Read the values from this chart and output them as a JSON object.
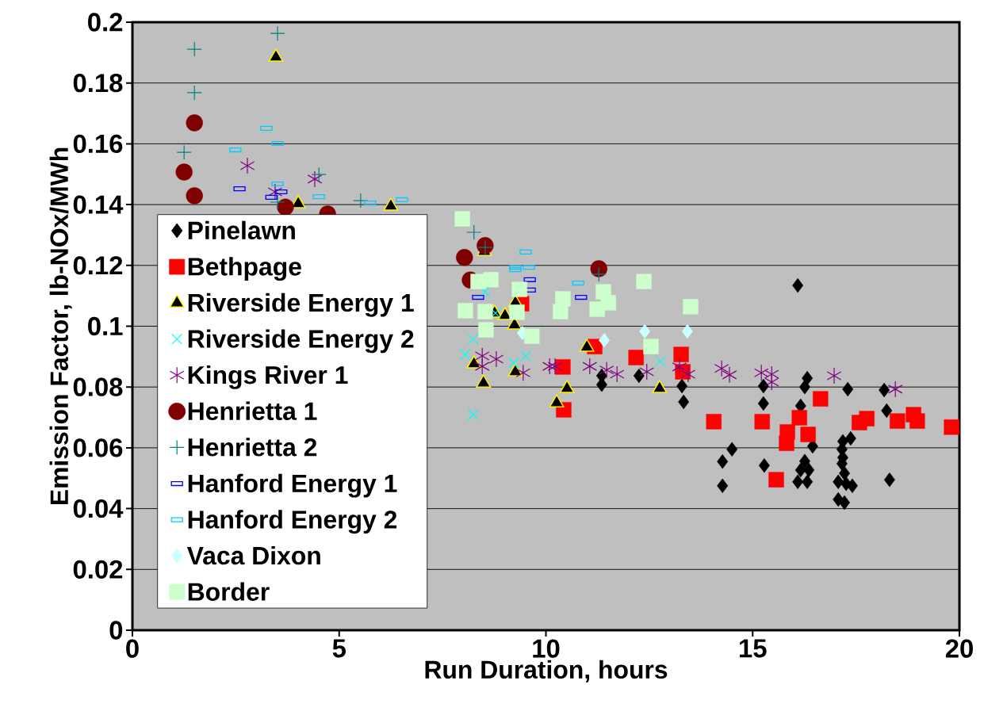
{
  "chart_data": {
    "type": "scatter",
    "xlabel": "Run Duration, hours",
    "ylabel": "Emission Factor, lb-NOx/MWh",
    "xlim": [
      0,
      20
    ],
    "ylim": [
      0,
      0.2
    ],
    "xticks": [
      0,
      5,
      10,
      15,
      20
    ],
    "yticks": [
      0,
      0.02,
      0.04,
      0.06,
      0.08,
      0.1,
      0.12,
      0.14,
      0.16,
      0.18,
      0.2
    ],
    "grid": "y",
    "legend": "left",
    "series": [
      {
        "name": "Pinelawn",
        "color": "#000000",
        "marker": "diamond",
        "x": [
          16.09,
          15.26,
          15.26,
          16.32,
          16.26,
          17.3,
          18.18,
          18.24,
          16.16,
          14.5,
          14.27,
          14.27,
          15.28,
          16.45,
          16.26,
          16.16,
          16.36,
          16.09,
          16.32,
          17.37,
          17.18,
          17.16,
          17.18,
          17.16,
          17.22,
          17.07,
          17.26,
          17.41,
          17.07,
          17.22,
          18.31,
          11.35,
          11.35,
          12.25,
          13.29,
          13.33
        ],
        "values": [
          0.1134,
          0.0803,
          0.0746,
          0.0829,
          0.08,
          0.0793,
          0.079,
          0.0722,
          0.0738,
          0.0595,
          0.0555,
          0.0475,
          0.0542,
          0.0605,
          0.0556,
          0.0527,
          0.0527,
          0.0488,
          0.0488,
          0.0631,
          0.0621,
          0.0595,
          0.0568,
          0.0548,
          0.0516,
          0.0488,
          0.0482,
          0.0475,
          0.043,
          0.042,
          0.0495,
          0.0837,
          0.0808,
          0.0837,
          0.0803,
          0.0751
        ]
      },
      {
        "name": "Bethpage",
        "color": "#ff0000",
        "marker": "square",
        "x": [
          14.06,
          15.23,
          16.64,
          16.13,
          15.84,
          15.82,
          16.34,
          15.57,
          17.76,
          17.58,
          18.5,
          18.89,
          18.98,
          19.81,
          9.41,
          10.41,
          10.43,
          11.18,
          12.18,
          13.27,
          13.31
        ],
        "values": [
          0.0686,
          0.0686,
          0.0761,
          0.0699,
          0.0652,
          0.0615,
          0.0644,
          0.0495,
          0.0696,
          0.0683,
          0.0688,
          0.0709,
          0.0688,
          0.0668,
          0.1074,
          0.0866,
          0.0725,
          0.0933,
          0.0897,
          0.0907,
          0.085
        ]
      },
      {
        "name": "Riverside Energy 1",
        "color": "#000000",
        "marker": "triangle",
        "x": [
          3.47,
          4.01,
          6.25,
          8.51,
          9.26,
          8.76,
          9.01,
          9.24,
          8.26,
          8.49,
          9.26,
          10.99,
          10.51,
          10.26,
          12.75
        ],
        "values": [
          0.1885,
          0.1403,
          0.1395,
          0.1246,
          0.1077,
          0.1043,
          0.1035,
          0.1004,
          0.0876,
          0.0813,
          0.085,
          0.0931,
          0.0795,
          0.0748,
          0.0795
        ]
      },
      {
        "name": "Riverside Energy 2",
        "color": "#00ffff",
        "marker": "cross",
        "x": [
          8.24,
          8.05,
          8.24,
          9.51,
          9.22,
          12.77,
          8.78,
          8.53
        ],
        "values": [
          0.0957,
          0.0907,
          0.0709,
          0.0902,
          0.0879,
          0.0884,
          0.1043,
          0.1113
        ]
      },
      {
        "name": "Kings River 1",
        "color": "#800080",
        "x": [
          2.78,
          4.41,
          3.45,
          8.46,
          8.46,
          8.8,
          9.45,
          10.09,
          10.22,
          11.06,
          11.47,
          11.72,
          12.44,
          13.23,
          13.44,
          14.25,
          14.44,
          15.21,
          15.46,
          15.46,
          16.97,
          18.45
        ],
        "values": [
          0.1528,
          0.1484,
          0.1442,
          0.0902,
          0.0868,
          0.0892,
          0.0847,
          0.0868,
          0.0868,
          0.0868,
          0.0856,
          0.0842,
          0.085,
          0.0866,
          0.0842,
          0.0861,
          0.084,
          0.0847,
          0.0842,
          0.0816,
          0.0837,
          0.0793
        ]
      },
      {
        "name": "Henrietta 1",
        "color": "#800000",
        "marker": "circle",
        "x": [
          1.5,
          1.25,
          1.5,
          3.7,
          4.72,
          8.53,
          8.03,
          11.28,
          8.17
        ],
        "values": [
          0.1669,
          0.1507,
          0.1429,
          0.1392,
          0.1369,
          0.1265,
          0.1226,
          0.1189,
          0.1152
        ]
      },
      {
        "name": "Henrietta 2",
        "color": "#008080",
        "marker": "plus",
        "x": [
          3.51,
          1.5,
          1.5,
          1.25,
          4.51,
          3.51,
          5.52,
          8.26,
          8.53,
          11.28
        ],
        "values": [
          0.1963,
          0.1911,
          0.1768,
          0.1572,
          0.1499,
          0.1408,
          0.1413,
          0.1309,
          0.1259,
          0.1171
        ]
      },
      {
        "name": "Hanford Energy 1",
        "color": "#0000ff",
        "marker": "rectangle",
        "x": [
          2.59,
          3.36,
          3.6,
          9.61,
          9.61,
          8.36,
          10.85
        ],
        "values": [
          0.1452,
          0.1424,
          0.1442,
          0.1153,
          0.1119,
          0.1095,
          0.1095
        ]
      },
      {
        "name": "Hanford Energy 2",
        "color": "#00ccff",
        "marker": "rectangle",
        "x": [
          3.24,
          2.49,
          3.51,
          3.51,
          4.51,
          5.75,
          6.52,
          9.51,
          9.26,
          9.26,
          9.59,
          10.78
        ],
        "values": [
          0.1651,
          0.158,
          0.1601,
          0.1468,
          0.1426,
          0.1405,
          0.1416,
          0.1244,
          0.1194,
          0.1186,
          0.1194,
          0.1142
        ]
      },
      {
        "name": "Vaca Dixon",
        "color": "#ccffff",
        "marker": "diamond",
        "x": [
          9.43,
          11.41,
          12.39,
          13.42
        ],
        "values": [
          0.0978,
          0.0954,
          0.0983,
          0.0983
        ]
      },
      {
        "name": "Border",
        "color": "#ccffcc",
        "marker": "square",
        "x": [
          7.98,
          8.36,
          8.67,
          9.36,
          10.41,
          10.35,
          11.39,
          11.51,
          11.24,
          12.37,
          13.5,
          8.05,
          8.53,
          9.3,
          8.55,
          9.66,
          12.54
        ],
        "values": [
          0.1353,
          0.1147,
          0.1153,
          0.1121,
          0.109,
          0.1048,
          0.1113,
          0.1077,
          0.1056,
          0.1147,
          0.1064,
          0.1051,
          0.1048,
          0.1046,
          0.0988,
          0.0967,
          0.0933
        ]
      }
    ]
  }
}
